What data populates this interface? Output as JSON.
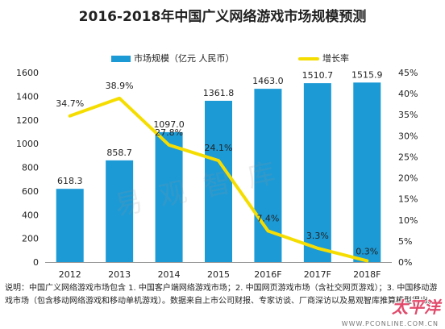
{
  "chart_data": {
    "type": "bar+line",
    "title": "2016-2018年中国广义网络游戏市场规模预测",
    "categories": [
      "2012",
      "2013",
      "2014",
      "2015",
      "2016F",
      "2017F",
      "2018F"
    ],
    "series": [
      {
        "name": "市场规模（亿元 人民币）",
        "type": "bar",
        "axis": "left",
        "values": [
          618.3,
          858.7,
          1097.0,
          1361.8,
          1463.0,
          1510.7,
          1515.9
        ],
        "labels": [
          "618.3",
          "858.7",
          "1097.0",
          "1361.8",
          "1463.0",
          "1510.7",
          "1515.9"
        ],
        "color": "#1c9ad6"
      },
      {
        "name": "增长率",
        "type": "line",
        "axis": "right",
        "values": [
          34.7,
          38.9,
          27.8,
          24.1,
          7.4,
          3.3,
          0.3
        ],
        "labels": [
          "34.7%",
          "38.9%",
          "27.8%",
          "24.1%",
          "7.4%",
          "3.3%",
          "0.3%"
        ],
        "color": "#f5dd00"
      }
    ],
    "ylim_left": [
      0,
      1600
    ],
    "yticks_left": [
      "0",
      "200",
      "400",
      "600",
      "800",
      "1000",
      "1200",
      "1400",
      "1600"
    ],
    "ylim_right": [
      0,
      45
    ],
    "yticks_right": [
      "0%",
      "5%",
      "10%",
      "15%",
      "20%",
      "25%",
      "30%",
      "35%",
      "40%",
      "45%"
    ],
    "legend_position": "top-center",
    "grid": false
  },
  "note": "说明：中国广义网络游戏市场包含 1. 中国客户端网络游戏市场；2. 中国网页游戏市场（含社交网页游戏）；3. 中国移动游戏市场（包含移动网络游戏和移动单机游戏）。数据来自上市公司财报、专家访谈、厂商深访以及易观智库推算模型得出。",
  "watermark": "易观智库",
  "logo": {
    "text": "太平洋",
    "sub": "WWW.PCONLINE.COM.CN"
  }
}
